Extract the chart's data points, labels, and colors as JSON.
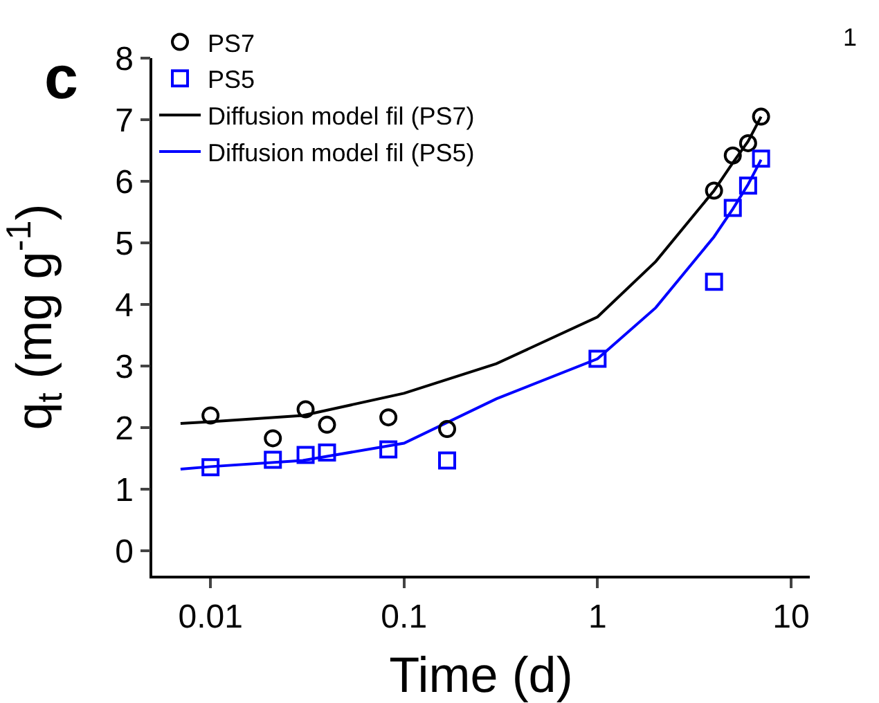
{
  "chart_data": {
    "type": "scatter",
    "xlabel": "Time (d)",
    "ylabel": "q$_{t}$ (mg g$^{-1}$)",
    "log": "x",
    "xlim": [
      0.005,
      12.5
    ],
    "ylim": [
      -0.4,
      8
    ],
    "xticks": [
      0.01,
      0.1,
      1,
      10
    ],
    "yticks": [
      0,
      1,
      2,
      3,
      4,
      5,
      6,
      7,
      8
    ],
    "grid": false,
    "legend": "top left",
    "annotations": [
      "c",
      "1"
    ],
    "series": [
      {
        "name": "PS7",
        "color": "#000000",
        "marker": "circle",
        "x": [
          0.01,
          0.021,
          0.031,
          0.04,
          0.083,
          0.167,
          4,
          5,
          6,
          7
        ],
        "values": [
          2.2,
          1.83,
          2.3,
          2.05,
          2.17,
          1.98,
          5.85,
          6.42,
          6.62,
          7.05
        ]
      },
      {
        "name": "PS5",
        "color": "#0000ff",
        "marker": "square",
        "x": [
          0.01,
          0.021,
          0.031,
          0.04,
          0.083,
          0.167,
          1,
          4,
          5,
          6,
          7
        ],
        "values": [
          1.36,
          1.48,
          1.56,
          1.6,
          1.65,
          1.47,
          3.12,
          4.37,
          5.57,
          5.93,
          6.37
        ]
      },
      {
        "name": "Diffusion model fil (PS7)",
        "type": "line",
        "color": "#000000",
        "marker": "none",
        "x": [
          0.007,
          0.01,
          0.03,
          0.1,
          0.3,
          1,
          2,
          4,
          5,
          6,
          7
        ],
        "values": [
          2.07,
          2.1,
          2.2,
          2.56,
          3.04,
          3.8,
          4.7,
          5.85,
          6.3,
          6.65,
          7.05
        ]
      },
      {
        "name": "Diffusion model fil (PS5)",
        "type": "line",
        "color": "#0000ff",
        "marker": "none",
        "x": [
          0.007,
          0.01,
          0.03,
          0.1,
          0.3,
          1,
          2,
          4,
          5,
          6,
          7
        ],
        "values": [
          1.33,
          1.37,
          1.47,
          1.75,
          2.47,
          3.12,
          3.95,
          5.1,
          5.55,
          5.95,
          6.35
        ]
      }
    ]
  }
}
